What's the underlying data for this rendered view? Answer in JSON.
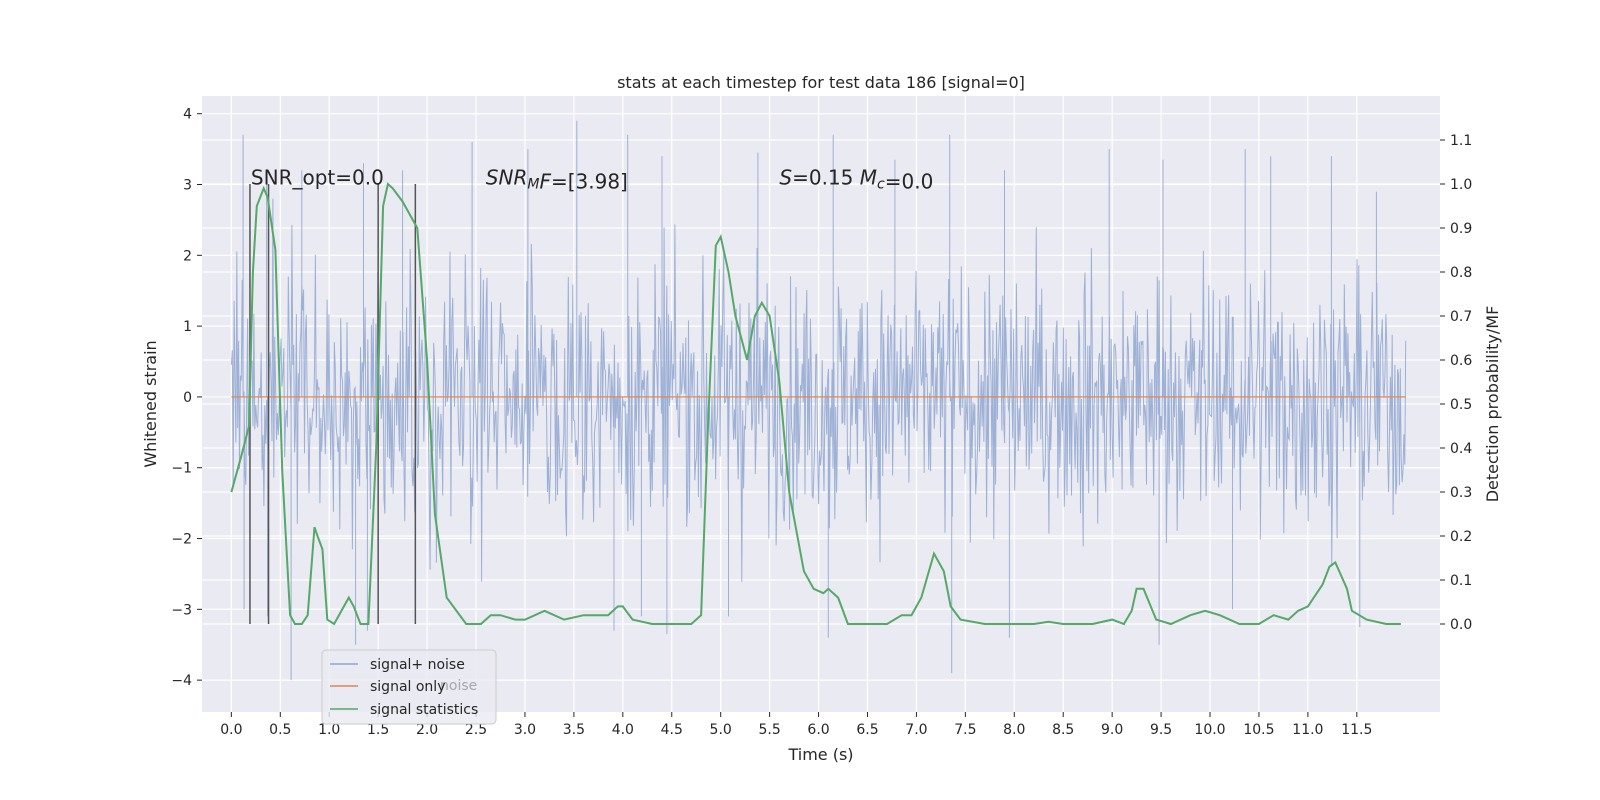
{
  "chart_data": {
    "type": "line",
    "title": "stats at each timestep for test data 186 [signal=0]",
    "xlabel": "Time (s)",
    "ylabel": "Whitened strain",
    "y2label": "Detection probability/MF",
    "xlim": [
      -0.3,
      12.35
    ],
    "ylim": [
      -4.45,
      4.25
    ],
    "y2lim": [
      -0.2,
      1.2
    ],
    "xticks": [
      0.0,
      0.5,
      1.0,
      1.5,
      2.0,
      2.5,
      3.0,
      3.5,
      4.0,
      4.5,
      5.0,
      5.5,
      6.0,
      6.5,
      7.0,
      7.5,
      8.0,
      8.5,
      9.0,
      9.5,
      10.0,
      10.5,
      11.0,
      11.5
    ],
    "xtick_labels": [
      "0.0",
      "0.5",
      "1.0",
      "1.5",
      "2.0",
      "2.5",
      "3.0",
      "3.5",
      "4.0",
      "4.5",
      "5.0",
      "5.5",
      "6.0",
      "6.5",
      "7.0",
      "7.5",
      "8.0",
      "8.5",
      "9.0",
      "9.5",
      "10.0",
      "10.5",
      "11.0",
      "11.5"
    ],
    "yticks": [
      -4,
      -3,
      -2,
      -1,
      0,
      1,
      2,
      3,
      4
    ],
    "ytick_labels": [
      "−4",
      "−3",
      "−2",
      "−1",
      "0",
      "1",
      "2",
      "3",
      "4"
    ],
    "y2ticks": [
      0.0,
      0.1,
      0.2,
      0.3,
      0.4,
      0.5,
      0.6,
      0.7,
      0.8,
      0.9,
      1.0,
      1.1
    ],
    "y2tick_labels": [
      "0.0",
      "0.1",
      "0.2",
      "0.3",
      "0.4",
      "0.5",
      "0.6",
      "0.7",
      "0.8",
      "0.9",
      "1.0",
      "1.1"
    ],
    "grid": true,
    "legend": {
      "placement": "lower-left"
    },
    "annotations": [
      {
        "parts": [
          {
            "text": "SNR_opt=0.0",
            "style": "normal"
          }
        ],
        "x": 0.2,
        "y": 3.1
      },
      {
        "parts": [
          {
            "text": "SNR",
            "style": "italic"
          },
          {
            "text": "M",
            "style": "italic-sub"
          },
          {
            "text": "F",
            "style": "italic"
          },
          {
            "text": "=[3.98]",
            "style": "normal"
          }
        ],
        "x": 2.6,
        "y": 3.1
      },
      {
        "parts": [
          {
            "text": "S",
            "style": "italic"
          },
          {
            "text": "=0.15   ",
            "style": "normal"
          },
          {
            "text": "M",
            "style": "italic"
          },
          {
            "text": "c",
            "style": "italic-sub"
          },
          {
            "text": "=0.0",
            "style": "normal"
          }
        ],
        "x": 5.6,
        "y": 3.1
      }
    ],
    "vlines": [
      {
        "x": 0.19,
        "y2_range": [
          0.0,
          1.0
        ]
      },
      {
        "x": 0.38,
        "y2_range": [
          0.0,
          1.0
        ]
      },
      {
        "x": 1.5,
        "y2_range": [
          0.0,
          1.0
        ]
      },
      {
        "x": 1.88,
        "y2_range": [
          0.0,
          1.0
        ]
      }
    ],
    "series": [
      {
        "name": "signal+ noise",
        "axis": "left",
        "color": "#8fa6d0",
        "style": "noise",
        "x_range": [
          0.0,
          12.0
        ],
        "peak_points": [
          [
            0.12,
            3.7
          ],
          [
            0.36,
            3.2
          ],
          [
            0.72,
            3.2
          ],
          [
            1.35,
            3.3
          ],
          [
            1.75,
            3.2
          ],
          [
            2.46,
            3.6
          ],
          [
            3.03,
            3.5
          ],
          [
            3.53,
            3.9
          ],
          [
            4.05,
            3.7
          ],
          [
            4.4,
            3.4
          ],
          [
            5.38,
            3.45
          ],
          [
            6.15,
            3.7
          ],
          [
            6.78,
            3.35
          ],
          [
            7.34,
            3.7
          ],
          [
            7.9,
            3.2
          ],
          [
            8.97,
            3.5
          ],
          [
            9.52,
            3.35
          ],
          [
            10.36,
            3.5
          ],
          [
            10.62,
            3.4
          ],
          [
            11.24,
            3.4
          ],
          [
            11.7,
            2.9
          ]
        ],
        "trough_points": [
          [
            0.13,
            -3.0
          ],
          [
            0.37,
            -3.1
          ],
          [
            0.61,
            -4.0
          ],
          [
            1.27,
            -3.5
          ],
          [
            1.39,
            -3.3
          ],
          [
            3.91,
            -3.3
          ],
          [
            4.19,
            -3.1
          ],
          [
            4.45,
            -3.35
          ],
          [
            5.08,
            -3.1
          ],
          [
            6.1,
            -3.4
          ],
          [
            7.36,
            -3.9
          ],
          [
            7.95,
            -3.4
          ],
          [
            9.48,
            -3.5
          ],
          [
            10.23,
            -3.0
          ],
          [
            11.53,
            -3.25
          ]
        ]
      },
      {
        "name": "signal only",
        "axis": "left",
        "color": "#dd8452",
        "x": [
          0.0,
          12.0
        ],
        "y": [
          0.0,
          0.0
        ]
      },
      {
        "name": "signal statistics",
        "axis": "right",
        "color": "#55a868",
        "x": [
          0.0,
          0.1,
          0.18,
          0.22,
          0.26,
          0.33,
          0.37,
          0.45,
          0.52,
          0.6,
          0.65,
          0.72,
          0.78,
          0.85,
          0.88,
          0.93,
          0.98,
          1.05,
          1.2,
          1.25,
          1.32,
          1.4,
          1.48,
          1.55,
          1.6,
          1.65,
          1.75,
          1.9,
          2.0,
          2.08,
          2.2,
          2.4,
          2.55,
          2.65,
          2.75,
          2.9,
          3.0,
          3.2,
          3.4,
          3.6,
          3.75,
          3.85,
          3.95,
          4.0,
          4.1,
          4.3,
          4.5,
          4.7,
          4.8,
          4.87,
          4.95,
          5.0,
          5.08,
          5.15,
          5.27,
          5.35,
          5.42,
          5.5,
          5.6,
          5.7,
          5.85,
          5.95,
          6.05,
          6.1,
          6.2,
          6.3,
          6.5,
          6.7,
          6.85,
          6.95,
          7.05,
          7.18,
          7.28,
          7.35,
          7.45,
          7.7,
          7.9,
          8.2,
          8.35,
          8.5,
          8.8,
          9.0,
          9.12,
          9.2,
          9.25,
          9.32,
          9.45,
          9.6,
          9.8,
          9.95,
          10.1,
          10.3,
          10.5,
          10.65,
          10.8,
          10.9,
          11.0,
          11.15,
          11.22,
          11.28,
          11.4,
          11.45,
          11.6,
          11.8,
          11.95
        ],
        "y": [
          0.3,
          0.38,
          0.45,
          0.8,
          0.95,
          0.99,
          0.97,
          0.85,
          0.35,
          0.02,
          0.0,
          0.0,
          0.02,
          0.22,
          0.2,
          0.17,
          0.01,
          0.0,
          0.06,
          0.04,
          0.0,
          0.0,
          0.4,
          0.95,
          1.0,
          0.99,
          0.96,
          0.9,
          0.6,
          0.25,
          0.06,
          0.0,
          0.0,
          0.02,
          0.02,
          0.01,
          0.01,
          0.03,
          0.01,
          0.02,
          0.02,
          0.02,
          0.04,
          0.04,
          0.01,
          0.0,
          0.0,
          0.0,
          0.02,
          0.45,
          0.86,
          0.88,
          0.8,
          0.7,
          0.6,
          0.7,
          0.73,
          0.7,
          0.55,
          0.3,
          0.12,
          0.08,
          0.07,
          0.08,
          0.06,
          0.0,
          0.0,
          0.0,
          0.02,
          0.02,
          0.06,
          0.16,
          0.12,
          0.04,
          0.01,
          0.0,
          0.0,
          0.0,
          0.005,
          0.0,
          0.0,
          0.01,
          0.0,
          0.03,
          0.08,
          0.08,
          0.01,
          0.0,
          0.02,
          0.03,
          0.02,
          0.0,
          0.0,
          0.02,
          0.01,
          0.03,
          0.04,
          0.09,
          0.13,
          0.14,
          0.08,
          0.03,
          0.01,
          0.0,
          0.0
        ]
      }
    ]
  },
  "legend_items": [
    {
      "label": "signal+ noise",
      "color": "#8fa6d0"
    },
    {
      "label": "signal only",
      "color": "#dd8452"
    },
    {
      "label": "signal statistics",
      "color": "#55a868"
    }
  ],
  "legend_ghost_text": "noise"
}
